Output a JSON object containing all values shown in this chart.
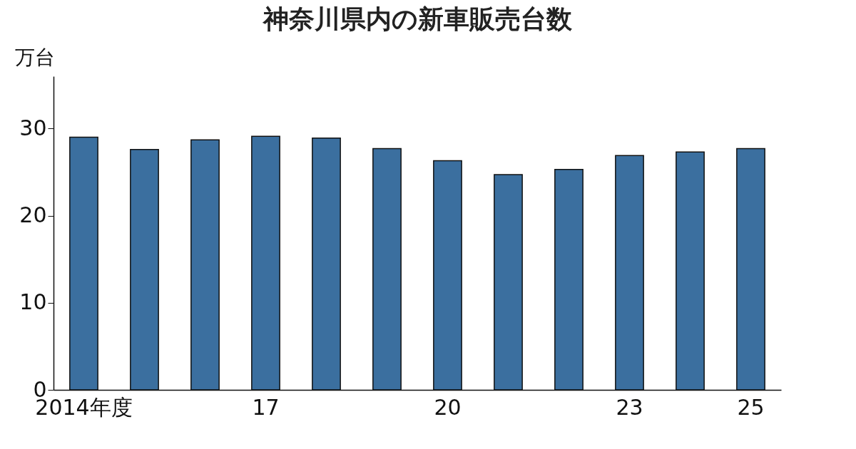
{
  "chart_data": {
    "type": "bar",
    "title": "神奈川県内の新車販売台数",
    "ylabel": "万台",
    "categories": [
      "2014年度",
      null,
      null,
      "17",
      null,
      null,
      "20",
      null,
      null,
      "23",
      null,
      "25"
    ],
    "values": [
      29.0,
      27.6,
      28.7,
      29.1,
      28.9,
      27.7,
      26.3,
      24.7,
      25.3,
      26.9,
      27.3,
      27.7
    ],
    "color": "#3b6f9f",
    "ylim": [
      0,
      36
    ],
    "yticks": [
      0,
      10,
      20,
      30
    ],
    "grid": false
  }
}
